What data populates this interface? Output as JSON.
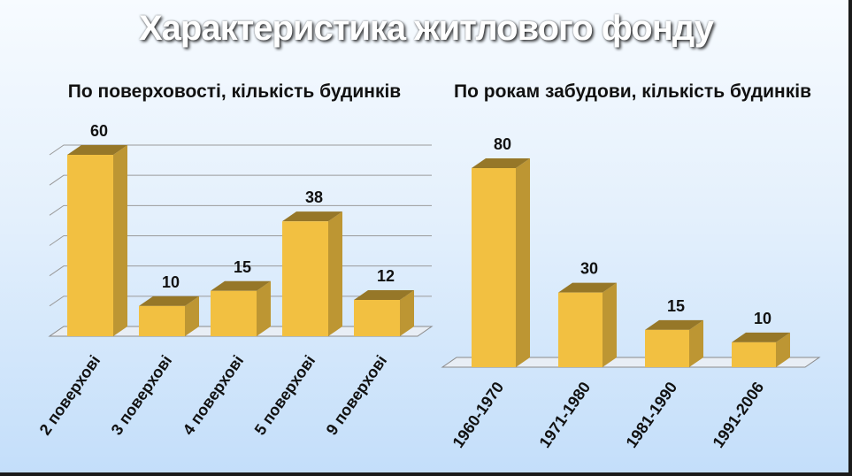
{
  "page_title": "Характеристика житлового фонду",
  "chart_data": [
    {
      "type": "bar",
      "title": "По поверховості, кількість будинків",
      "categories": [
        "2 поверхові",
        "3 поверхові",
        "4 поверхові",
        "5 поверхові",
        "9 поверхові"
      ],
      "values": [
        60,
        10,
        15,
        38,
        12
      ],
      "ylim": [
        0,
        60
      ],
      "grid": true,
      "legend": "none",
      "bar_color": "#f2c041"
    },
    {
      "type": "bar",
      "title": "По рокам забудови, кількість будинків",
      "categories": [
        "1960-1970",
        "1971-1980",
        "1981-1990",
        "1991-2006"
      ],
      "values": [
        80,
        30,
        15,
        10
      ],
      "ylim": [
        0,
        80
      ],
      "grid": false,
      "legend": "none",
      "bar_color": "#f2c041"
    }
  ]
}
